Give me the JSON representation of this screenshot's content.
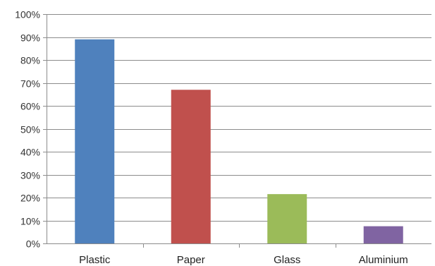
{
  "chart_data": {
    "type": "bar",
    "categories": [
      "Plastic",
      "Paper",
      "Glass",
      "Aluminium"
    ],
    "values": [
      89,
      67,
      21.5,
      7.5
    ],
    "colors": [
      "#4f81bd",
      "#c0504d",
      "#9bbb59",
      "#8064a2"
    ],
    "y_ticks": [
      "0%",
      "10%",
      "20%",
      "30%",
      "40%",
      "50%",
      "60%",
      "70%",
      "80%",
      "90%",
      "100%"
    ],
    "ylim": [
      0,
      100
    ],
    "grid": true,
    "legend": "none",
    "title": "",
    "xlabel": "",
    "ylabel": ""
  }
}
